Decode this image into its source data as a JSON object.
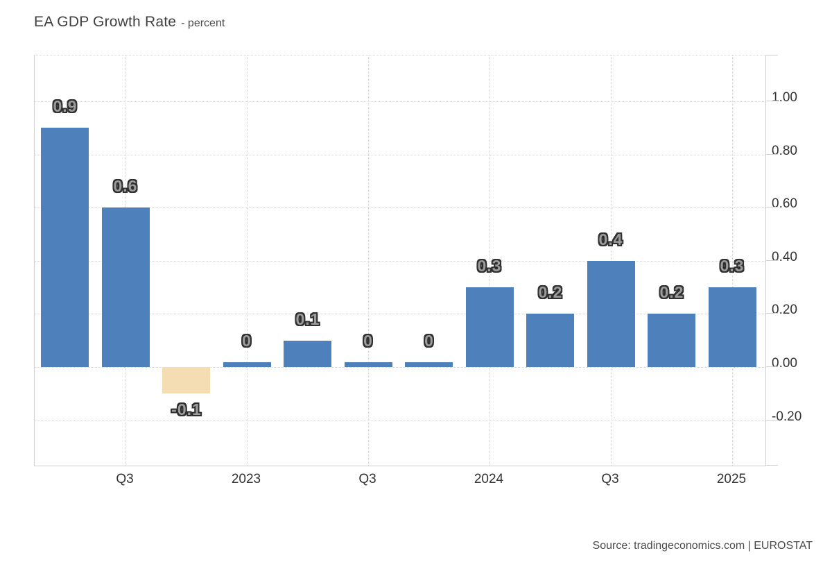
{
  "header": {
    "title": "EA GDP Growth Rate",
    "subtitle": "- percent"
  },
  "footer": {
    "source": "Source: tradingeconomics.com | EUROSTAT"
  },
  "chart_data": {
    "type": "bar",
    "title": "EA GDP Growth Rate",
    "ylabel": "percent",
    "values": [
      0.9,
      0.6,
      -0.1,
      0,
      0.1,
      0,
      0,
      0.3,
      0.2,
      0.4,
      0.2,
      0.3
    ],
    "bar_labels": [
      "0.9",
      "0.6",
      "-0.1",
      "0",
      "0.1",
      "0",
      "0",
      "0.3",
      "0.2",
      "0.4",
      "0.2",
      "0.3"
    ],
    "x_tick_labels": [
      "Q3",
      "2023",
      "Q3",
      "2024",
      "Q3",
      "2025"
    ],
    "x_tick_bar_indexes": [
      1,
      3,
      5,
      7,
      9,
      11
    ],
    "y_ticks": [
      1.0,
      0.8,
      0.6,
      0.4,
      0.2,
      0.0,
      -0.2
    ],
    "y_tick_labels": [
      "1.00",
      "0.80",
      "0.60",
      "0.40",
      "0.20",
      "0.00",
      "-0.20"
    ],
    "ylim": [
      -0.37,
      1.17
    ],
    "grid": "dotted",
    "legend_position": "none",
    "colors": {
      "positive_bar": "#4e80bb",
      "negative_bar": "#f4ddb3",
      "grid": "#d8d8d8",
      "axis": "#cfcfcf",
      "tick_text": "#333333"
    }
  }
}
